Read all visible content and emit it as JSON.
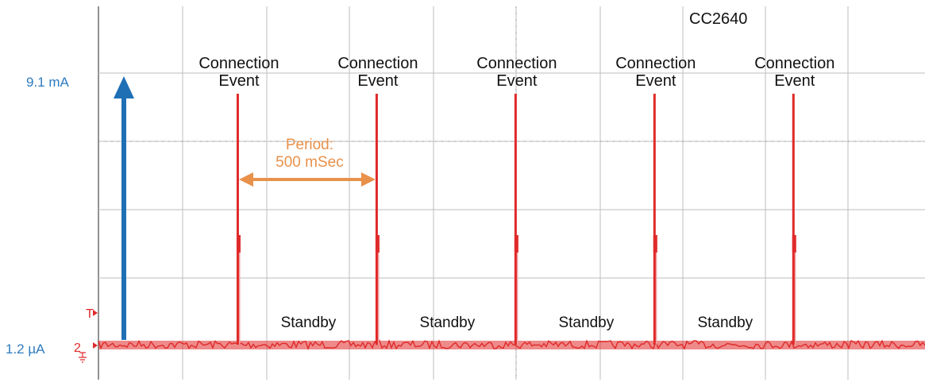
{
  "chart_data": {
    "type": "line",
    "title": "CC2640",
    "y_levels": {
      "high_label": "9.1 mA",
      "low_label": "1.2 µA"
    },
    "series": [
      {
        "color": "#e02a2a",
        "x": [
          0,
          500,
          1000,
          1500,
          2000
        ],
        "values": [
          9.1,
          9.1,
          9.1,
          9.1,
          9.1
        ]
      }
    ],
    "baseline_value": 0.0012,
    "baseline_unit": "mA",
    "event_labels": [
      [
        "Connection",
        "Event"
      ],
      [
        "Connection",
        "Event"
      ],
      [
        "Connection",
        "Event"
      ],
      [
        "Connection",
        "Event"
      ],
      [
        "Connection",
        "Event"
      ]
    ],
    "standby_labels": [
      "Standby",
      "Standby",
      "Standby",
      "Standby"
    ],
    "period_annotation": {
      "lines": [
        "Period:",
        "500 mSec"
      ],
      "from_event": 0,
      "to_event": 1,
      "value_ms": 500
    },
    "x_range_ms": [
      -500,
      2475
    ],
    "scope_markers": {
      "trigger": "T",
      "channel": "2"
    },
    "grid": true,
    "colors": {
      "trace": "#e02a2a",
      "trace_light": "#f0a0a0",
      "level_arrow": "#1f6fb5",
      "period_arrow": "#e8914a",
      "level_label": "#2e7bbf",
      "grid": "#bdbdbd",
      "axis": "#777777"
    }
  }
}
